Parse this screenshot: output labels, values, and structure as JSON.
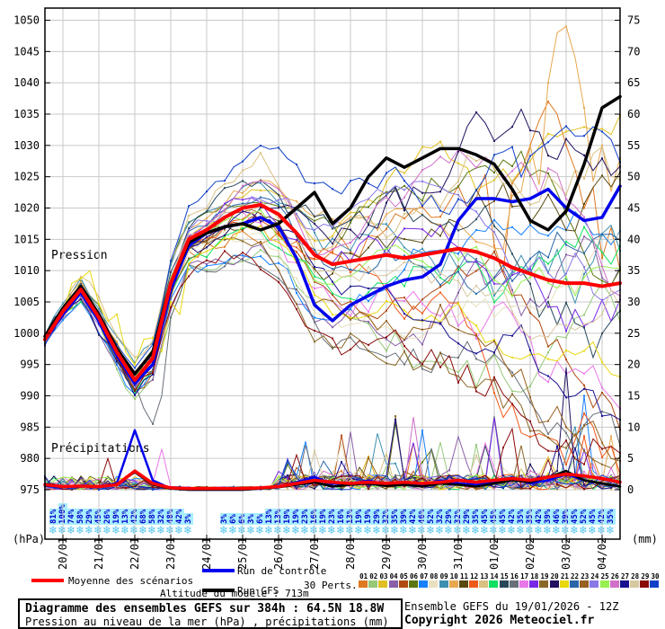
{
  "axes": {
    "left_unit": "(hPa)",
    "right_unit": "(mm)",
    "pressure_label": "Pression",
    "precip_label": "Précipitations",
    "left_ticks": [
      975,
      980,
      985,
      990,
      995,
      1000,
      1005,
      1010,
      1015,
      1020,
      1025,
      1030,
      1035,
      1040,
      1045,
      1050
    ],
    "right_ticks": [
      0,
      5,
      10,
      15,
      20,
      25,
      30,
      35,
      40,
      45,
      50,
      55,
      60,
      65,
      70,
      75
    ],
    "dates": [
      "20/01",
      "21/01",
      "22/01",
      "23/01",
      "24/01",
      "25/01",
      "26/01",
      "27/01",
      "28/01",
      "29/01",
      "30/01",
      "31/01",
      "01/02",
      "02/02",
      "03/02",
      "04/02"
    ]
  },
  "legend": {
    "mean": "Moyenne des scénarios",
    "control": "Run de contrôle",
    "gfs": "Run GFS",
    "perts": "30 Perts."
  },
  "footer": {
    "altitude": "Altitude du modele : 713m",
    "title": "Diagramme des ensembles GEFS sur 384h : 64.5N 18.8W",
    "subtitle": "Pression au niveau de la mer (hPa) , précipitations (mm)",
    "run_info": "Ensemble GEFS du 19/01/2026 - 12Z",
    "copyright": "Copyright 2026 Meteociel.fr"
  },
  "chart_data": {
    "type": "line",
    "x_start": "19/01 12h",
    "x_end": "04/02 12h",
    "span_hours": 384,
    "main_step_hours": 12,
    "member_step_hours": 6,
    "ylim_left_hpa": [
      975,
      1050
    ],
    "ylim_right_mm": [
      0,
      75
    ],
    "grid": true,
    "series": [
      {
        "name": "Moyenne des scénarios",
        "color": "#ff0000",
        "width": 4,
        "pressure": [
          999,
          1003.5,
          1007,
          1002.5,
          997,
          992.5,
          996,
          1008,
          1015,
          1016.5,
          1018.5,
          1020,
          1020.5,
          1019,
          1016,
          1012.5,
          1011,
          1011.5,
          1012,
          1012.5,
          1012,
          1012.5,
          1013,
          1013.5,
          1013,
          1012,
          1010.5,
          1009.5,
          1008.5,
          1008,
          1008,
          1007.5,
          1008
        ],
        "precip": [
          0.8,
          0.5,
          0.6,
          0.5,
          0.8,
          3.0,
          1.0,
          0.3,
          0.2,
          0.2,
          0.2,
          0.2,
          0.3,
          0.5,
          1.0,
          1.5,
          1.2,
          1.0,
          1.2,
          1.0,
          1.2,
          1.0,
          1.2,
          1.5,
          1.2,
          1.5,
          1.8,
          1.5,
          2.0,
          2.5,
          2.2,
          1.8,
          1.2
        ]
      },
      {
        "name": "Run de contrôle",
        "color": "#0000ee",
        "width": 3.5,
        "pressure": [
          999,
          1003,
          1006.5,
          1002,
          996.5,
          992,
          995,
          1007,
          1014,
          1016,
          1017,
          1017.5,
          1018.5,
          1017,
          1012,
          1004.5,
          1002,
          1004.5,
          1006,
          1007.5,
          1008.5,
          1009,
          1011,
          1018,
          1021.5,
          1021.5,
          1021,
          1021.5,
          1023,
          1020,
          1018,
          1018.5,
          1023.5
        ],
        "precip": [
          0.6,
          0.4,
          0.5,
          0.6,
          1.0,
          9.5,
          1.5,
          0.2,
          0,
          0,
          0,
          0,
          0.2,
          0.5,
          1.2,
          2.0,
          1.0,
          0.8,
          1.5,
          0.8,
          1.0,
          0.8,
          1.5,
          1.0,
          0.8,
          1.2,
          2.0,
          1.0,
          1.5,
          2.5,
          1.5,
          1.0,
          0.5
        ]
      },
      {
        "name": "Run GFS",
        "color": "#000000",
        "width": 3.5,
        "pressure": [
          999.5,
          1004,
          1007.5,
          1003,
          997.5,
          993.5,
          997,
          1008,
          1014.5,
          1016,
          1017,
          1017.5,
          1016.5,
          1017.5,
          1020,
          1022.5,
          1017.5,
          1020,
          1025,
          1028,
          1026.5,
          1028,
          1029.5,
          1029.5,
          1028.5,
          1027,
          1023,
          1018,
          1016.5,
          1019.5,
          1027,
          1036,
          1037.8
        ],
        "precip": [
          0.7,
          0.5,
          0.6,
          0.4,
          0.9,
          2.8,
          0.8,
          0.2,
          0,
          0,
          0,
          0,
          0.2,
          0.4,
          0.8,
          1.2,
          0.5,
          0.8,
          1.0,
          0.6,
          0.8,
          0.5,
          1.0,
          0.8,
          0.5,
          1.0,
          1.5,
          1.2,
          2.0,
          3.0,
          1.5,
          1.0,
          0.5
        ]
      }
    ],
    "members": [
      {
        "id": "01",
        "color": "#e07820"
      },
      {
        "id": "02",
        "color": "#96c878"
      },
      {
        "id": "03",
        "color": "#e0c020"
      },
      {
        "id": "04",
        "color": "#8a5fa8"
      },
      {
        "id": "05",
        "color": "#b04a10"
      },
      {
        "id": "06",
        "color": "#5a7810"
      },
      {
        "id": "07",
        "color": "#1680ff"
      },
      {
        "id": "08",
        "color": "#e8e0c0"
      },
      {
        "id": "09",
        "color": "#3e90b0"
      },
      {
        "id": "10",
        "color": "#e8a850"
      },
      {
        "id": "11",
        "color": "#5a4a10"
      },
      {
        "id": "12",
        "color": "#f05818"
      },
      {
        "id": "13",
        "color": "#d8c080"
      },
      {
        "id": "14",
        "color": "#10e060"
      },
      {
        "id": "15",
        "color": "#28485a"
      },
      {
        "id": "16",
        "color": "#687078"
      },
      {
        "id": "17",
        "color": "#e878e8"
      },
      {
        "id": "18",
        "color": "#7828e8"
      },
      {
        "id": "19",
        "color": "#8a6828"
      },
      {
        "id": "20",
        "color": "#201060"
      },
      {
        "id": "21",
        "color": "#e8d810"
      },
      {
        "id": "22",
        "color": "#2866a8"
      },
      {
        "id": "23",
        "color": "#96601e"
      },
      {
        "id": "24",
        "color": "#8878e8"
      },
      {
        "id": "25",
        "color": "#96f050"
      },
      {
        "id": "26",
        "color": "#d070c8"
      },
      {
        "id": "27",
        "color": "#181090"
      },
      {
        "id": "28",
        "color": "#d8c8a0"
      },
      {
        "id": "29",
        "color": "#8a0a0a"
      },
      {
        "id": "30",
        "color": "#1040c8"
      }
    ],
    "member_overrides": {
      "01": {
        "pressure": {
          "50": 1014,
          "52": 1024,
          "54": 1030,
          "55": 1034,
          "56": 1037,
          "57": 1035,
          "58": 1030,
          "60": 1020,
          "62": 1012,
          "64": 1010
        }
      },
      "10": {
        "pressure": {
          "52": 1022,
          "54": 1030,
          "56": 1040,
          "57": 1048,
          "58": 1050,
          "59": 1044,
          "60": 1036,
          "62": 1030,
          "64": 1028
        }
      },
      "16": {
        "pressure": {
          "10": 992,
          "11": 988,
          "12": 985.5,
          "13": 990
        }
      },
      "21": {
        "pressure": {
          "3": 1008,
          "5": 1010,
          "8": 1003,
          "11": 999,
          "13": 997,
          "15": 1003
        }
      },
      "20": {
        "precip": {
          "57": 3,
          "58": 19.5,
          "59": 2
        }
      },
      "07": {
        "precip": {
          "59": 2,
          "60": 15,
          "61": 3
        }
      },
      "17": {
        "precip": {
          "12": 1,
          "13": 6.5,
          "14": 0.5
        }
      },
      "29": {
        "precip": {
          "6": 0.5,
          "7": 5,
          "8": 0.3
        }
      },
      "18": {
        "precip": {
          "49": 1,
          "50": 11.5,
          "51": 1
        }
      }
    },
    "snow_probability": {
      "unit": "%",
      "step_hours": 6,
      "groups": [
        {
          "start": 1,
          "values": [
            81,
            100,
            74,
            58,
            29,
            45,
            26,
            19,
            13,
            42,
            68,
            58,
            32,
            48,
            42,
            3
          ]
        },
        {
          "start": 20,
          "values": [
            3,
            6,
            6,
            3,
            6,
            13,
            13,
            19,
            19,
            23,
            16,
            19,
            23,
            16,
            13,
            19,
            19,
            29,
            32,
            35,
            39,
            42,
            46,
            52,
            32,
            29,
            32,
            29,
            35,
            45,
            45,
            45,
            42,
            35,
            35,
            42,
            39,
            46,
            39,
            45,
            52,
            45,
            42,
            35
          ]
        }
      ]
    }
  }
}
